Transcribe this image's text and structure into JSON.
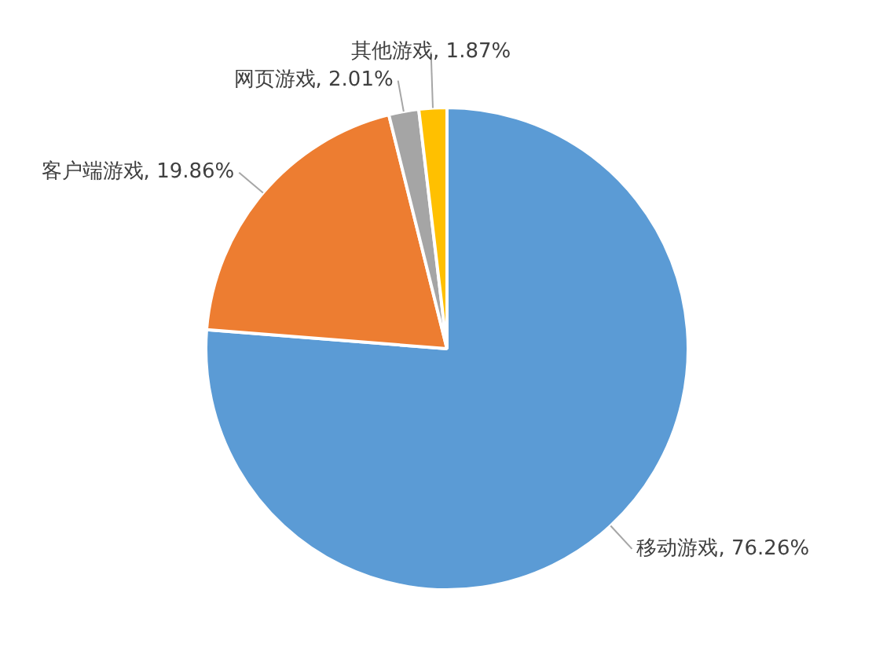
{
  "chart_data": {
    "type": "pie",
    "categories": [
      "移动游戏",
      "客户端游戏",
      "网页游戏",
      "其他游戏"
    ],
    "values": [
      76.26,
      19.86,
      2.01,
      1.87
    ],
    "colors": [
      "#5b9bd5",
      "#ed7d31",
      "#a5a5a5",
      "#ffc000"
    ],
    "value_labels": [
      "76.26%",
      "19.86%",
      "2.01%",
      "1.87%"
    ],
    "legend": false
  }
}
